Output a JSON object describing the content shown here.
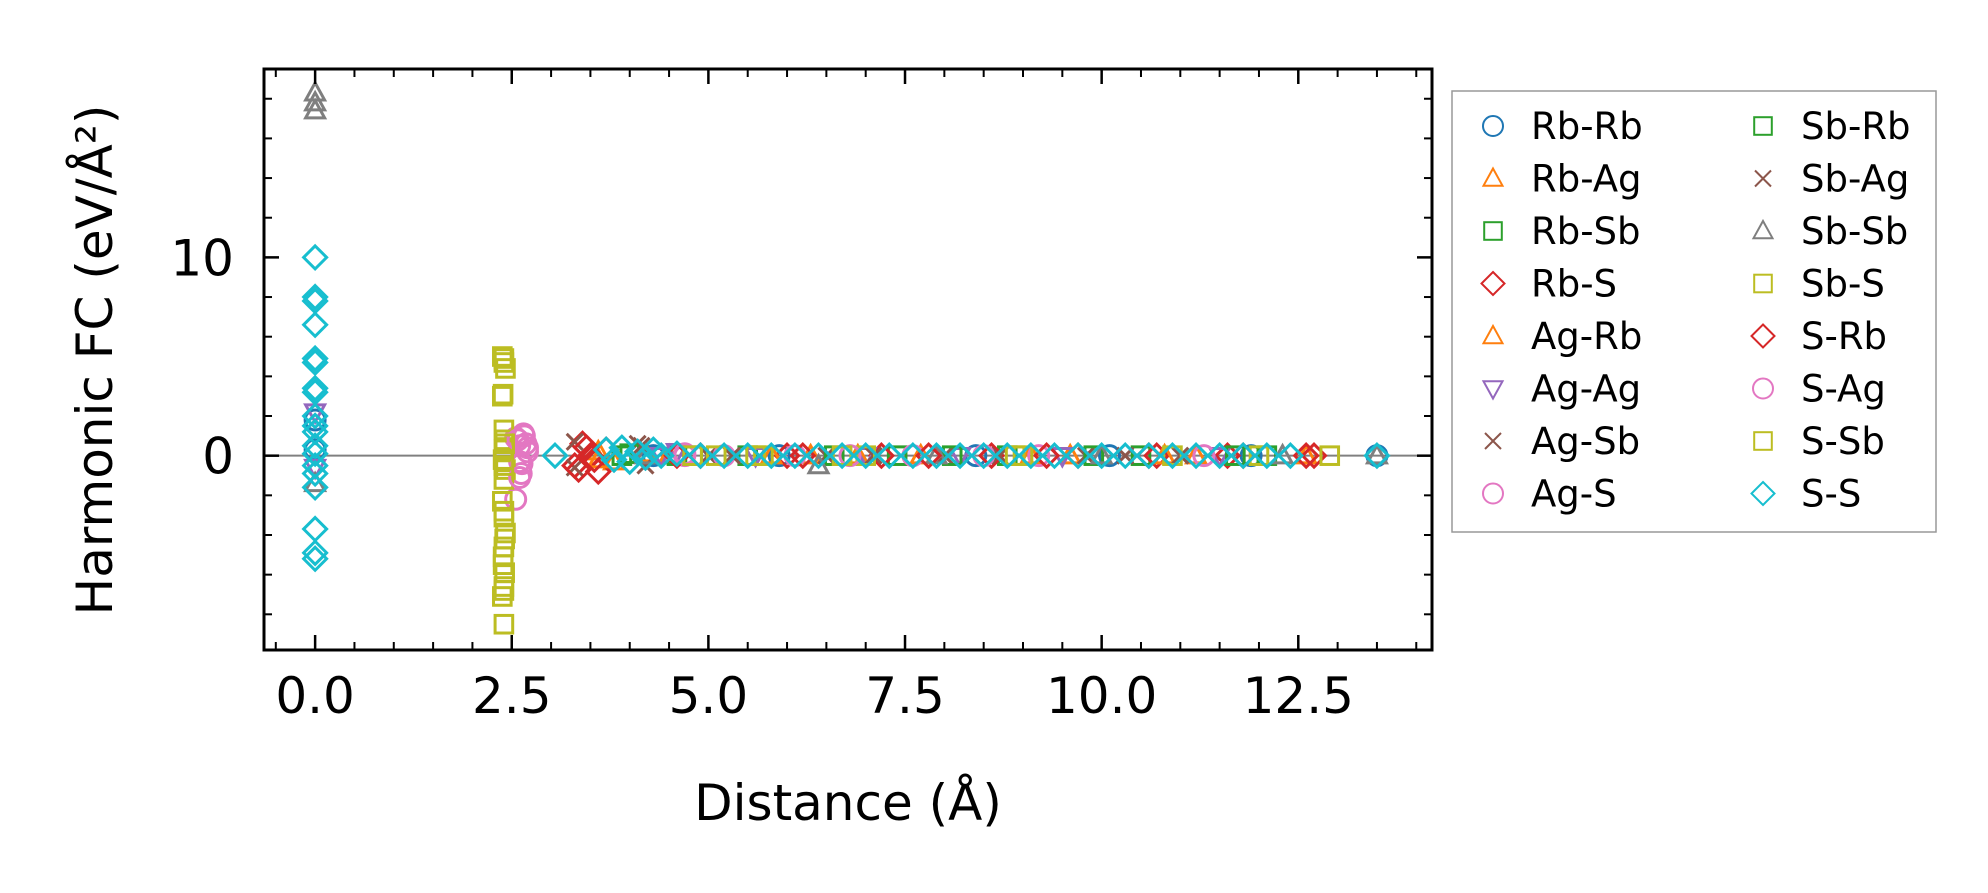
{
  "chart_data": {
    "type": "scatter",
    "title": "",
    "xlabel": "Distance (Å)",
    "ylabel": "Harmonic FC (eV/Å²)",
    "xlim": [
      -0.65,
      14.2
    ],
    "ylim": [
      -9.8,
      19.5
    ],
    "xticks": [
      0.0,
      2.5,
      5.0,
      7.5,
      10.0,
      12.5
    ],
    "xtick_labels": [
      "0.0",
      "2.5",
      "5.0",
      "7.5",
      "10.0",
      "12.5"
    ],
    "yticks": [
      0,
      10
    ],
    "ytick_labels": [
      "0",
      "10"
    ],
    "zero_line": true,
    "legend_position": "outside-right",
    "series": [
      {
        "name": "Rb-Rb",
        "marker": "circle",
        "color": "#1f77b4",
        "points": [
          [
            0,
            1.8
          ],
          [
            0,
            0.3
          ],
          [
            4.3,
            0.0
          ],
          [
            5.9,
            0.0
          ],
          [
            8.4,
            0.0
          ],
          [
            10.1,
            0.0
          ],
          [
            11.9,
            0.0
          ],
          [
            13.5,
            0.0
          ]
        ]
      },
      {
        "name": "Rb-Ag",
        "marker": "triangle-up",
        "color": "#ff7f0e",
        "points": [
          [
            3.6,
            0.2
          ],
          [
            3.8,
            -0.3
          ],
          [
            4.5,
            0.0
          ],
          [
            6.3,
            0.0
          ],
          [
            7.7,
            0.0
          ],
          [
            9.6,
            0.0
          ],
          [
            11.2,
            0.0
          ],
          [
            12.6,
            0.0
          ]
        ]
      },
      {
        "name": "Rb-Sb",
        "marker": "square",
        "color": "#2ca02c",
        "points": [
          [
            3.9,
            0.0
          ],
          [
            4.6,
            0.0
          ],
          [
            5.5,
            0.0
          ],
          [
            7.4,
            0.0
          ],
          [
            8.8,
            0.0
          ],
          [
            10.5,
            0.0
          ],
          [
            12.1,
            0.0
          ]
        ]
      },
      {
        "name": "Rb-S",
        "marker": "diamond",
        "color": "#d62728",
        "points": [
          [
            3.3,
            -0.5
          ],
          [
            3.4,
            0.6
          ],
          [
            3.5,
            0.0
          ],
          [
            3.6,
            -0.8
          ],
          [
            3.7,
            0.3
          ],
          [
            4.9,
            0.0
          ],
          [
            6.0,
            0.0
          ],
          [
            7.2,
            0.0
          ],
          [
            8.6,
            0.0
          ],
          [
            9.7,
            0.0
          ],
          [
            10.7,
            0.0
          ],
          [
            11.6,
            0.0
          ],
          [
            12.7,
            0.0
          ]
        ]
      },
      {
        "name": "Ag-Rb",
        "marker": "triangle-up",
        "color": "#ff7f0e",
        "points": [
          [
            3.6,
            -0.2
          ],
          [
            4.2,
            0.1
          ],
          [
            5.8,
            0.0
          ],
          [
            6.9,
            0.0
          ],
          [
            9.1,
            0.0
          ],
          [
            10.8,
            0.0
          ]
        ]
      },
      {
        "name": "Ag-Ag",
        "marker": "triangle-down",
        "color": "#9467bd",
        "points": [
          [
            0,
            2.2
          ],
          [
            0,
            -0.6
          ],
          [
            4.4,
            0.0
          ],
          [
            4.6,
            0.2
          ],
          [
            5.6,
            0.0
          ],
          [
            7.0,
            0.0
          ],
          [
            8.2,
            0.0
          ],
          [
            9.5,
            0.0
          ],
          [
            11.5,
            0.0
          ]
        ]
      },
      {
        "name": "Ag-Sb",
        "marker": "x",
        "color": "#8c564b",
        "points": [
          [
            3.3,
            0.7
          ],
          [
            4.1,
            0.6
          ],
          [
            4.2,
            -0.5
          ],
          [
            5.0,
            0.0
          ],
          [
            6.5,
            0.0
          ],
          [
            8.0,
            0.0
          ],
          [
            9.8,
            0.0
          ],
          [
            11.0,
            0.0
          ]
        ]
      },
      {
        "name": "Ag-S",
        "marker": "circle",
        "color": "#e377c2",
        "points": [
          [
            2.55,
            0.9
          ],
          [
            2.6,
            0.5
          ],
          [
            2.6,
            -0.3
          ],
          [
            2.65,
            1.1
          ],
          [
            2.55,
            -2.2
          ],
          [
            2.7,
            0.2
          ],
          [
            2.62,
            -0.9
          ],
          [
            2.68,
            0.6
          ],
          [
            4.7,
            0.0
          ],
          [
            5.2,
            0.0
          ],
          [
            6.1,
            0.0
          ],
          [
            7.6,
            0.0
          ],
          [
            9.2,
            0.0
          ],
          [
            11.3,
            0.0
          ]
        ]
      },
      {
        "name": "Sb-Rb",
        "marker": "square",
        "color": "#2ca02c",
        "points": [
          [
            4.0,
            0.1
          ],
          [
            4.8,
            0.0
          ],
          [
            6.6,
            0.0
          ],
          [
            8.1,
            0.0
          ],
          [
            9.9,
            0.0
          ],
          [
            11.7,
            0.0
          ]
        ]
      },
      {
        "name": "Sb-Ag",
        "marker": "x",
        "color": "#8c564b",
        "points": [
          [
            3.3,
            -0.6
          ],
          [
            4.15,
            0.5
          ],
          [
            5.3,
            0.0
          ],
          [
            7.1,
            0.0
          ],
          [
            8.7,
            0.0
          ],
          [
            10.3,
            0.0
          ]
        ]
      },
      {
        "name": "Sb-Sb",
        "marker": "triangle-up",
        "color": "#7f7f7f",
        "points": [
          [
            0,
            18.3
          ],
          [
            0,
            17.8
          ],
          [
            0,
            17.4
          ],
          [
            0,
            -1.4
          ],
          [
            4.2,
            0.0
          ],
          [
            6.4,
            -0.5
          ],
          [
            7.9,
            0.0
          ],
          [
            10.0,
            0.0
          ],
          [
            12.3,
            0.0
          ],
          [
            13.5,
            0.0
          ]
        ]
      },
      {
        "name": "Sb-S",
        "marker": "square",
        "color": "#bcbd22",
        "points": [
          [
            2.38,
            5.0
          ],
          [
            2.4,
            4.7
          ],
          [
            2.42,
            4.4
          ],
          [
            2.38,
            3.0
          ],
          [
            2.4,
            1.3
          ],
          [
            2.41,
            0.8
          ],
          [
            2.4,
            0.3
          ],
          [
            2.39,
            -0.2
          ],
          [
            2.42,
            -0.7
          ],
          [
            2.4,
            -1.2
          ],
          [
            2.38,
            -2.3
          ],
          [
            2.4,
            -3.1
          ],
          [
            2.42,
            -3.9
          ],
          [
            2.4,
            -4.6
          ],
          [
            2.39,
            -5.1
          ],
          [
            2.41,
            -5.9
          ],
          [
            2.4,
            -6.6
          ],
          [
            2.38,
            -7.1
          ],
          [
            2.4,
            -8.5
          ],
          [
            5.1,
            0.0
          ],
          [
            5.7,
            0.0
          ],
          [
            7.0,
            0.0
          ],
          [
            8.9,
            0.0
          ],
          [
            10.9,
            0.0
          ],
          [
            12.9,
            0.0
          ]
        ]
      },
      {
        "name": "S-Rb",
        "marker": "diamond",
        "color": "#d62728",
        "points": [
          [
            3.35,
            -0.7
          ],
          [
            3.45,
            0.4
          ],
          [
            3.55,
            -0.2
          ],
          [
            4.6,
            0.0
          ],
          [
            6.2,
            0.0
          ],
          [
            7.8,
            0.0
          ],
          [
            9.3,
            0.0
          ],
          [
            10.6,
            0.0
          ],
          [
            11.8,
            0.0
          ],
          [
            12.6,
            0.0
          ]
        ]
      },
      {
        "name": "S-Ag",
        "marker": "circle",
        "color": "#e377c2",
        "points": [
          [
            2.58,
            0.8
          ],
          [
            2.63,
            -0.4
          ],
          [
            2.66,
            1.0
          ],
          [
            2.6,
            -1.1
          ],
          [
            2.7,
            0.4
          ],
          [
            4.7,
            0.1
          ],
          [
            6.8,
            0.0
          ],
          [
            8.5,
            0.0
          ]
        ]
      },
      {
        "name": "S-Sb",
        "marker": "square",
        "color": "#bcbd22",
        "points": [
          [
            2.4,
            4.9
          ],
          [
            2.39,
            3.1
          ],
          [
            2.41,
            0.6
          ],
          [
            2.4,
            -0.5
          ],
          [
            2.4,
            -2.8
          ],
          [
            2.41,
            -4.2
          ],
          [
            2.39,
            -5.5
          ],
          [
            2.4,
            -6.8
          ],
          [
            4.8,
            0.0
          ],
          [
            5.6,
            0.0
          ],
          [
            6.7,
            0.0
          ],
          [
            9.0,
            0.0
          ],
          [
            12.0,
            0.0
          ]
        ]
      },
      {
        "name": "S-S",
        "marker": "diamond",
        "color": "#17becf",
        "points": [
          [
            0,
            10.0
          ],
          [
            0,
            8.0
          ],
          [
            0,
            7.8
          ],
          [
            0,
            6.6
          ],
          [
            0,
            4.9
          ],
          [
            0,
            4.7
          ],
          [
            0,
            3.4
          ],
          [
            0,
            3.2
          ],
          [
            0,
            2.0
          ],
          [
            0,
            1.5
          ],
          [
            0,
            1.2
          ],
          [
            0,
            0.5
          ],
          [
            0,
            0.1
          ],
          [
            0,
            -0.5
          ],
          [
            0,
            -0.9
          ],
          [
            0,
            -1.6
          ],
          [
            0,
            -3.7
          ],
          [
            0,
            -4.9
          ],
          [
            0,
            -5.2
          ],
          [
            3.05,
            0.0
          ],
          [
            3.7,
            0.3
          ],
          [
            3.8,
            -0.2
          ],
          [
            3.9,
            0.4
          ],
          [
            4.0,
            -0.3
          ],
          [
            4.1,
            0.2
          ],
          [
            4.2,
            -0.1
          ],
          [
            4.3,
            0.3
          ],
          [
            4.4,
            0.0
          ],
          [
            4.6,
            0.1
          ],
          [
            4.9,
            0.0
          ],
          [
            5.2,
            0.0
          ],
          [
            5.5,
            0.0
          ],
          [
            5.8,
            0.0
          ],
          [
            6.1,
            0.0
          ],
          [
            6.4,
            0.0
          ],
          [
            6.7,
            0.0
          ],
          [
            7.0,
            0.0
          ],
          [
            7.3,
            0.0
          ],
          [
            7.6,
            0.0
          ],
          [
            7.9,
            0.0
          ],
          [
            8.2,
            0.0
          ],
          [
            8.5,
            0.0
          ],
          [
            8.8,
            0.0
          ],
          [
            9.1,
            0.0
          ],
          [
            9.4,
            0.0
          ],
          [
            9.7,
            0.0
          ],
          [
            10.0,
            0.0
          ],
          [
            10.3,
            0.0
          ],
          [
            10.6,
            0.0
          ],
          [
            10.9,
            0.0
          ],
          [
            11.2,
            0.0
          ],
          [
            11.5,
            0.0
          ],
          [
            11.8,
            0.0
          ],
          [
            12.1,
            0.0
          ],
          [
            12.4,
            0.0
          ],
          [
            13.5,
            0.0
          ]
        ]
      }
    ]
  }
}
